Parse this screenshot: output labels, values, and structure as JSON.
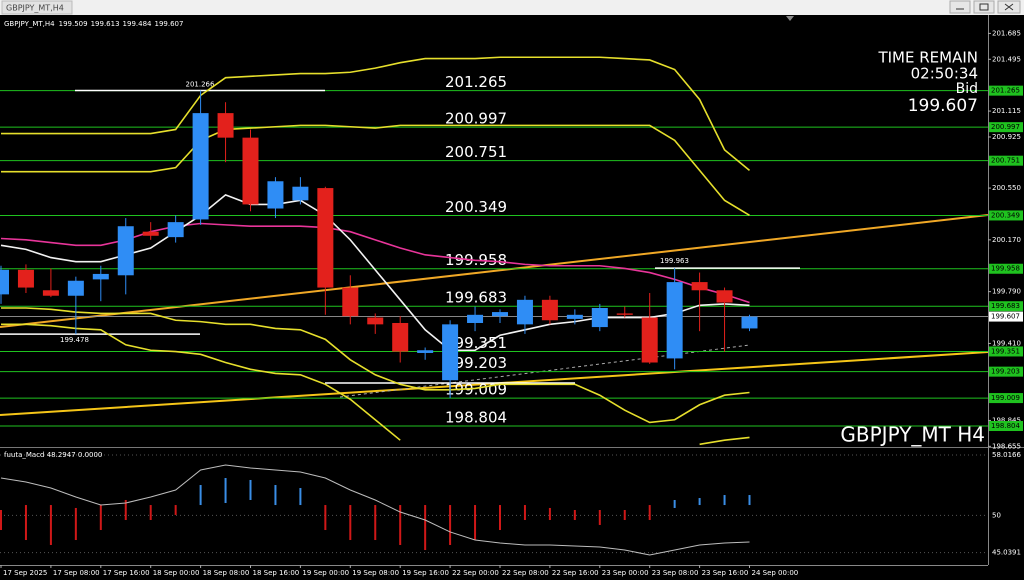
{
  "window_title": "GBPJPY_MT,H4",
  "chart_data": {
    "type": "candlestick",
    "symbol": "GBPJPY_MT,H4",
    "ohlc": [
      199.509,
      199.613,
      199.484,
      199.607
    ],
    "time_remain_label": "TIME REMAIN",
    "time_remain": "02:50:34",
    "bid_label": "Bid",
    "bid": 199.607,
    "watermark": "GBPJPY_MT H4",
    "categories": [
      "17 Sep 2025",
      null,
      "17 Sep 08:00",
      null,
      "17 Sep 16:00",
      null,
      "18 Sep 00:00",
      null,
      "18 Sep 08:00",
      null,
      "18 Sep 16:00",
      null,
      "19 Sep 00:00",
      null,
      "19 Sep 08:00",
      null,
      "19 Sep 16:00",
      null,
      "22 Sep 00:00",
      null,
      "22 Sep 08:00",
      null,
      "22 Sep 16:00",
      null,
      "23 Sep 00:00",
      null,
      "23 Sep 08:00",
      null,
      "23 Sep 16:00",
      null,
      "24 Sep 00:00"
    ],
    "open": [
      199.77,
      199.95,
      199.8,
      199.76,
      199.88,
      199.91,
      200.23,
      200.19,
      200.32,
      201.1,
      200.92,
      200.4,
      200.46,
      200.55,
      199.82,
      199.6,
      199.56,
      199.34,
      199.14,
      199.56,
      199.61,
      199.55,
      199.73,
      199.59,
      199.53,
      199.63,
      199.6,
      199.3,
      199.86,
      199.8,
      199.52
    ],
    "high": [
      199.98,
      199.99,
      199.96,
      199.9,
      199.98,
      200.33,
      200.3,
      200.35,
      201.266,
      201.18,
      200.98,
      200.63,
      200.63,
      200.56,
      199.91,
      199.63,
      199.61,
      199.38,
      199.58,
      199.68,
      199.66,
      199.76,
      199.76,
      199.66,
      199.7,
      199.68,
      199.78,
      199.963,
      199.93,
      199.82,
      199.62
    ],
    "low": [
      199.7,
      199.78,
      199.75,
      199.478,
      199.72,
      199.77,
      200.17,
      200.15,
      200.28,
      200.74,
      200.38,
      200.33,
      200.43,
      199.62,
      199.55,
      199.48,
      199.27,
      199.29,
      199.009,
      199.5,
      199.56,
      199.48,
      199.55,
      199.55,
      199.5,
      199.6,
      199.26,
      199.22,
      199.5,
      199.35,
      199.5
    ],
    "close": [
      199.95,
      199.82,
      199.76,
      199.87,
      199.92,
      200.27,
      200.2,
      200.3,
      201.1,
      200.92,
      200.43,
      200.6,
      200.56,
      199.82,
      199.61,
      199.55,
      199.35,
      199.36,
      199.55,
      199.62,
      199.64,
      199.73,
      199.58,
      199.62,
      199.67,
      199.62,
      199.27,
      199.86,
      199.8,
      199.71,
      199.607
    ],
    "up_color": "#2f8df5",
    "down_color": "#e3211c",
    "lines": [
      {
        "color": "#e6df2c",
        "values": [
          200.95,
          200.95,
          200.95,
          200.95,
          200.95,
          200.95,
          200.95,
          200.98,
          201.23,
          201.36,
          201.37,
          201.38,
          201.39,
          201.39,
          201.4,
          201.43,
          201.47,
          201.5,
          201.5,
          201.5,
          201.51,
          201.51,
          201.51,
          201.51,
          201.51,
          201.5,
          201.49,
          201.42,
          201.2,
          200.83,
          200.68
        ]
      },
      {
        "color": "#e6df2c",
        "values": [
          200.67,
          200.67,
          200.67,
          200.67,
          200.67,
          200.67,
          200.67,
          200.7,
          200.9,
          200.98,
          200.99,
          201.0,
          201.01,
          201.01,
          201.0,
          200.99,
          201.01,
          201.01,
          201.01,
          201.01,
          201.01,
          201.01,
          201.01,
          201.01,
          201.01,
          201.01,
          201.01,
          200.9,
          200.68,
          200.46,
          200.35
        ]
      },
      {
        "color": "#e6df2c",
        "values": [
          199.67,
          199.67,
          199.66,
          199.64,
          199.63,
          199.63,
          199.63,
          199.58,
          199.57,
          199.55,
          199.55,
          199.52,
          199.51,
          199.44,
          199.29,
          199.18,
          199.11,
          199.07,
          199.07,
          199.08,
          199.11,
          199.11,
          199.11,
          199.11,
          199.03,
          198.92,
          198.83,
          198.85,
          198.96,
          199.03,
          199.05
        ]
      },
      {
        "color": "#e6df2c",
        "values": [
          199.55,
          199.55,
          199.54,
          199.52,
          199.51,
          199.4,
          199.36,
          199.35,
          199.33,
          199.27,
          199.22,
          199.19,
          199.18,
          199.11,
          199.0,
          198.85,
          198.7,
          null,
          null,
          null,
          null,
          null,
          null,
          null,
          null,
          null,
          null,
          null,
          198.67,
          198.7,
          198.72
        ]
      },
      {
        "color": "#e8359a",
        "values": [
          200.18,
          200.17,
          200.15,
          200.13,
          200.13,
          200.17,
          200.23,
          200.27,
          200.29,
          200.28,
          200.27,
          200.27,
          200.27,
          200.26,
          200.23,
          200.17,
          200.11,
          200.06,
          200.04,
          200.02,
          200.01,
          199.99,
          199.98,
          199.98,
          199.98,
          199.96,
          199.93,
          199.88,
          199.82,
          199.77,
          199.71
        ]
      },
      {
        "color": "#f2f2f2",
        "values": [
          200.13,
          200.1,
          200.04,
          200.01,
          200.01,
          200.06,
          200.11,
          200.23,
          200.35,
          200.5,
          200.43,
          200.43,
          200.46,
          200.35,
          200.17,
          199.95,
          199.73,
          199.51,
          199.36,
          199.36,
          199.47,
          199.51,
          199.55,
          199.57,
          199.6,
          199.6,
          199.6,
          199.63,
          199.69,
          199.7,
          199.69
        ]
      }
    ],
    "levels": [
      201.265,
      200.997,
      200.751,
      200.349,
      199.958,
      199.683,
      199.351,
      199.203,
      199.009,
      198.804
    ],
    "level_color": "#1fc21f",
    "markers": [
      201.266,
      199.478,
      199.963
    ],
    "ylim": [
      198.65,
      201.82
    ],
    "yticks": [
      201.685,
      201.495,
      201.115,
      200.925,
      {
        "value": 200.55,
        "label": "200.550"
      },
      {
        "value": 200.17,
        "label": "200.170"
      },
      {
        "value": 199.79,
        "label": "199.790"
      },
      {
        "value": 199.41,
        "label": "199.410"
      },
      198.845,
      198.655
    ],
    "indicator": {
      "type": "histogram",
      "label": "fuuta_Macd 48.2947 0.0000",
      "bar_high": [
        50.71,
        51.37,
        51.37,
        50.98,
        51.37,
        52.04,
        51.37,
        51.37,
        54.03,
        54.96,
        54.7,
        54.03,
        53.63,
        51.37,
        51.37,
        51.37,
        51.37,
        51.37,
        51.37,
        51.37,
        51.37,
        51.37,
        50.98,
        50.71,
        50.71,
        50.71,
        51.37,
        52.04,
        52.3,
        52.7,
        52.7
      ],
      "bar_low": [
        48.05,
        46.72,
        46.06,
        46.72,
        48.05,
        49.38,
        49.38,
        50.05,
        51.37,
        51.64,
        52.04,
        51.37,
        51.37,
        48.05,
        46.72,
        46.72,
        46.06,
        45.39,
        46.06,
        46.72,
        48.05,
        49.38,
        49.38,
        49.38,
        48.72,
        49.38,
        49.38,
        50.98,
        51.37,
        51.37,
        51.37
      ],
      "bar_colors": [
        "#d01818",
        "#d01818",
        "#d01818",
        "#d01818",
        "#d01818",
        "#d01818",
        "#d01818",
        "#d01818",
        "#3a8ee6",
        "#3a8ee6",
        "#3a8ee6",
        "#3a8ee6",
        "#3a8ee6",
        "#d01818",
        "#d01818",
        "#d01818",
        "#d01818",
        "#d01818",
        "#d01818",
        "#d01818",
        "#d01818",
        "#d01818",
        "#d01818",
        "#d01818",
        "#d01818",
        "#d01818",
        "#d01818",
        "#3a8ee6",
        "#3a8ee6",
        "#3a8ee6",
        "#3a8ee6"
      ],
      "signal": {
        "color": "#bdbdbd",
        "values": [
          54.96,
          54.43,
          53.63,
          52.44,
          51.37,
          51.64,
          52.44,
          53.37,
          56.03,
          56.69,
          56.29,
          56.03,
          55.76,
          54.96,
          53.37,
          52.04,
          50.44,
          49.38,
          47.79,
          46.72,
          46.32,
          46.06,
          46.06,
          45.93,
          45.79,
          45.39,
          44.73,
          45.39,
          46.06,
          46.32,
          46.46
        ]
      },
      "ylim": [
        43.4,
        58.95
      ],
      "yticks": [
        58.0166,
        50,
        45.0391
      ]
    }
  }
}
